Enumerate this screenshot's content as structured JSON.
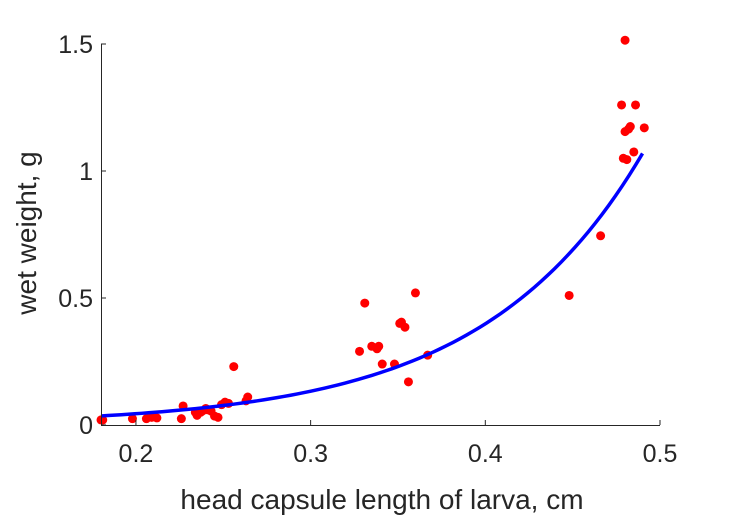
{
  "chart_data": {
    "type": "scatter",
    "title": "",
    "xlabel": "head capsule length of larva, cm",
    "ylabel": "wet weight, g",
    "xlim": [
      0.18,
      0.5
    ],
    "ylim": [
      0,
      1.5
    ],
    "xticks": [
      0.2,
      0.3,
      0.4,
      0.5
    ],
    "xtick_labels": [
      "0.2",
      "0.3",
      "0.4",
      "0.5"
    ],
    "yticks": [
      0,
      0.5,
      1,
      1.5
    ],
    "ytick_labels": [
      "0",
      "0.5",
      "1",
      "1.5"
    ],
    "grid": false,
    "legend": "none",
    "series": [
      {
        "kind": "scatter",
        "color": "#ff0000",
        "points": [
          [
            0.18,
            0.02
          ],
          [
            0.181,
            0.02
          ],
          [
            0.198,
            0.025
          ],
          [
            0.206,
            0.025
          ],
          [
            0.209,
            0.03
          ],
          [
            0.212,
            0.028
          ],
          [
            0.226,
            0.025
          ],
          [
            0.227,
            0.075
          ],
          [
            0.234,
            0.05
          ],
          [
            0.235,
            0.038
          ],
          [
            0.237,
            0.05
          ],
          [
            0.238,
            0.055
          ],
          [
            0.24,
            0.065
          ],
          [
            0.241,
            0.06
          ],
          [
            0.243,
            0.055
          ],
          [
            0.245,
            0.035
          ],
          [
            0.247,
            0.03
          ],
          [
            0.249,
            0.08
          ],
          [
            0.251,
            0.09
          ],
          [
            0.253,
            0.085
          ],
          [
            0.256,
            0.23
          ],
          [
            0.263,
            0.095
          ],
          [
            0.264,
            0.11
          ],
          [
            0.328,
            0.29
          ],
          [
            0.331,
            0.48
          ],
          [
            0.335,
            0.31
          ],
          [
            0.338,
            0.3
          ],
          [
            0.339,
            0.31
          ],
          [
            0.341,
            0.24
          ],
          [
            0.348,
            0.24
          ],
          [
            0.351,
            0.4
          ],
          [
            0.352,
            0.405
          ],
          [
            0.354,
            0.385
          ],
          [
            0.356,
            0.17
          ],
          [
            0.36,
            0.52
          ],
          [
            0.367,
            0.275
          ],
          [
            0.448,
            0.51
          ],
          [
            0.466,
            0.745
          ],
          [
            0.478,
            1.26
          ],
          [
            0.479,
            1.05
          ],
          [
            0.48,
            1.515
          ],
          [
            0.48,
            1.155
          ],
          [
            0.481,
            1.045
          ],
          [
            0.482,
            1.165
          ],
          [
            0.483,
            1.175
          ],
          [
            0.485,
            1.075
          ],
          [
            0.486,
            1.26
          ],
          [
            0.491,
            1.17
          ]
        ]
      },
      {
        "kind": "line",
        "color": "#0000ff",
        "curve": {
          "form": "a*exp(b*x)",
          "a": 0.00495,
          "b": 10.97,
          "x_from": 0.18,
          "x_to": 0.49
        }
      }
    ]
  }
}
